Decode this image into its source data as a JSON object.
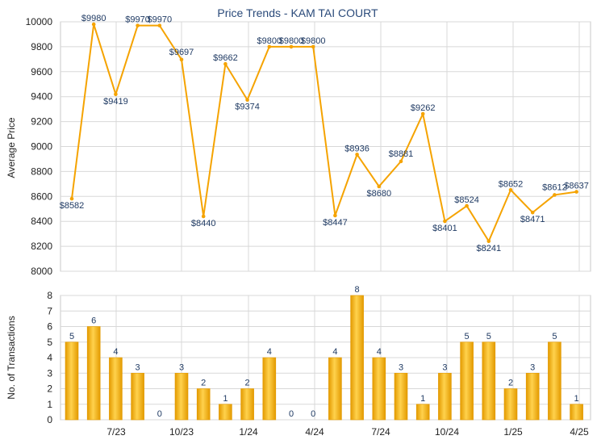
{
  "colors": {
    "line": "#f5a300",
    "bar_dark": "#e39a00",
    "bar_light": "#ffd24d",
    "grid": "#d8d8d8",
    "label": "#1f3a63"
  },
  "chart_data": [
    {
      "type": "line",
      "title": "Price Trends - KAM TAI COURT",
      "ylabel": "Average Price",
      "ylim": [
        8000,
        10000
      ],
      "yticks": [
        8000,
        8200,
        8400,
        8600,
        8800,
        9000,
        9200,
        9400,
        9600,
        9800,
        10000
      ],
      "x_tick_labels": [
        "7/23",
        "10/23",
        "1/24",
        "4/24",
        "7/24",
        "10/24",
        "1/25",
        "4/25"
      ],
      "grid": true,
      "points": [
        {
          "slot": 0,
          "value": 8582,
          "label": "$8582"
        },
        {
          "slot": 1,
          "value": 9980,
          "label": "$9980"
        },
        {
          "slot": 2,
          "value": 9419,
          "label": "$9419"
        },
        {
          "slot": 3,
          "value": 9970,
          "label": "$9970"
        },
        {
          "slot": 4,
          "value": 9970,
          "label": "$9970"
        },
        {
          "slot": 5,
          "value": 9697,
          "label": "$9697"
        },
        {
          "slot": 6,
          "value": 8440,
          "label": "$8440"
        },
        {
          "slot": 7,
          "value": 9662,
          "label": "$9662"
        },
        {
          "slot": 8,
          "value": 9374,
          "label": "$9374"
        },
        {
          "slot": 9,
          "value": 9800,
          "label": "$9800"
        },
        {
          "slot": 10,
          "value": 9800,
          "label": "$9800"
        },
        {
          "slot": 11,
          "value": 9800,
          "label": "$9800"
        },
        {
          "slot": 12,
          "value": 8447,
          "label": "$8447"
        },
        {
          "slot": 13,
          "value": 8936,
          "label": "$8936"
        },
        {
          "slot": 14,
          "value": 8680,
          "label": "$8680"
        },
        {
          "slot": 15,
          "value": 8881,
          "label": "$8881"
        },
        {
          "slot": 16,
          "value": 9262,
          "label": "$9262"
        },
        {
          "slot": 17,
          "value": 8401,
          "label": "$8401"
        },
        {
          "slot": 18,
          "value": 8524,
          "label": "$8524"
        },
        {
          "slot": 19,
          "value": 8241,
          "label": "$8241"
        },
        {
          "slot": 20,
          "value": 8652,
          "label": "$8652"
        },
        {
          "slot": 21,
          "value": 8471,
          "label": "$8471"
        },
        {
          "slot": 22,
          "value": 8612,
          "label": "$8612"
        },
        {
          "slot": 23,
          "value": 8637,
          "label": "$8637"
        }
      ]
    },
    {
      "type": "bar",
      "ylabel": "No. of Transactions",
      "ylim": [
        0,
        8
      ],
      "yticks": [
        0,
        1,
        2,
        3,
        4,
        5,
        6,
        7,
        8
      ],
      "x_tick_labels": [
        "7/23",
        "10/23",
        "1/24",
        "4/24",
        "7/24",
        "10/24",
        "1/25",
        "4/25"
      ],
      "grid": true,
      "values": [
        5,
        6,
        4,
        3,
        0,
        3,
        2,
        1,
        2,
        4,
        0,
        0,
        4,
        8,
        4,
        3,
        1,
        3,
        5,
        5,
        2,
        3,
        5,
        1
      ]
    }
  ]
}
